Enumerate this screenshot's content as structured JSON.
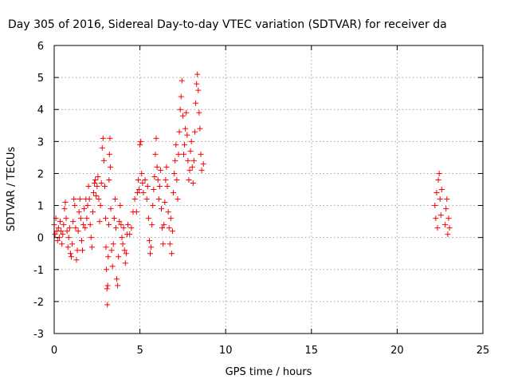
{
  "chart_data": {
    "type": "scatter",
    "title": "Day 305 of 2016, Sidereal Day-to-day VTEC variation (SDTVAR) for receiver da",
    "xlabel": "GPS time / hours",
    "ylabel": "SDTVAR / TECUs",
    "xlim": [
      0,
      25
    ],
    "ylim": [
      -3,
      6
    ],
    "xticks": [
      0,
      5,
      10,
      15,
      20,
      25
    ],
    "yticks": [
      -3,
      -2,
      -1,
      0,
      1,
      2,
      3,
      4,
      5,
      6
    ],
    "grid": true,
    "marker": "plus",
    "series": [
      {
        "name": "SDTVAR",
        "color": "#ff0000",
        "points": [
          [
            0.0,
            0.4
          ],
          [
            0.05,
            0.1
          ],
          [
            0.1,
            0.6
          ],
          [
            0.15,
            0.2
          ],
          [
            0.2,
            -0.1
          ],
          [
            0.25,
            0.3
          ],
          [
            0.3,
            0.0
          ],
          [
            0.35,
            0.5
          ],
          [
            0.4,
            0.2
          ],
          [
            0.45,
            -0.2
          ],
          [
            0.5,
            0.1
          ],
          [
            0.55,
            0.4
          ],
          [
            0.6,
            0.9
          ],
          [
            0.65,
            1.1
          ],
          [
            0.7,
            0.6
          ],
          [
            0.75,
            0.2
          ],
          [
            0.8,
            -0.3
          ],
          [
            0.85,
            0.0
          ],
          [
            0.9,
            0.3
          ],
          [
            0.95,
            -0.5
          ],
          [
            1.0,
            -0.6
          ],
          [
            1.05,
            -0.2
          ],
          [
            1.1,
            0.5
          ],
          [
            1.15,
            1.2
          ],
          [
            1.2,
            1.0
          ],
          [
            1.25,
            0.3
          ],
          [
            1.3,
            -0.7
          ],
          [
            1.35,
            -0.4
          ],
          [
            1.4,
            0.2
          ],
          [
            1.45,
            0.8
          ],
          [
            1.5,
            1.2
          ],
          [
            1.55,
            0.6
          ],
          [
            1.6,
            -0.1
          ],
          [
            1.65,
            -0.4
          ],
          [
            1.7,
            0.4
          ],
          [
            1.75,
            0.9
          ],
          [
            1.8,
            0.3
          ],
          [
            1.85,
            1.2
          ],
          [
            1.9,
            0.6
          ],
          [
            1.95,
            1.0
          ],
          [
            2.0,
            1.6
          ],
          [
            2.05,
            1.2
          ],
          [
            2.1,
            0.4
          ],
          [
            2.15,
            0.0
          ],
          [
            2.2,
            -0.3
          ],
          [
            2.25,
            0.8
          ],
          [
            2.3,
            1.4
          ],
          [
            2.35,
            1.7
          ],
          [
            2.4,
            1.8
          ],
          [
            2.45,
            1.3
          ],
          [
            2.5,
            1.6
          ],
          [
            2.55,
            1.9
          ],
          [
            2.6,
            1.2
          ],
          [
            2.65,
            0.5
          ],
          [
            2.7,
            1.0
          ],
          [
            2.75,
            1.7
          ],
          [
            2.8,
            2.8
          ],
          [
            2.85,
            3.1
          ],
          [
            2.9,
            2.4
          ],
          [
            2.95,
            1.6
          ],
          [
            3.0,
            0.6
          ],
          [
            3.02,
            -0.3
          ],
          [
            3.05,
            -1.0
          ],
          [
            3.08,
            -1.6
          ],
          [
            3.1,
            -2.1
          ],
          [
            3.12,
            -1.5
          ],
          [
            3.15,
            -0.6
          ],
          [
            3.18,
            0.4
          ],
          [
            3.2,
            1.8
          ],
          [
            3.22,
            2.6
          ],
          [
            3.25,
            3.1
          ],
          [
            3.28,
            2.2
          ],
          [
            3.3,
            0.9
          ],
          [
            3.35,
            -0.4
          ],
          [
            3.4,
            -0.9
          ],
          [
            3.45,
            -0.2
          ],
          [
            3.5,
            0.6
          ],
          [
            3.55,
            1.2
          ],
          [
            3.6,
            0.3
          ],
          [
            3.65,
            -1.3
          ],
          [
            3.7,
            -1.5
          ],
          [
            3.75,
            -0.6
          ],
          [
            3.8,
            0.5
          ],
          [
            3.85,
            1.0
          ],
          [
            3.9,
            0.4
          ],
          [
            3.95,
            0.0
          ],
          [
            4.0,
            -0.2
          ],
          [
            4.05,
            0.3
          ],
          [
            4.1,
            -0.4
          ],
          [
            4.15,
            -0.8
          ],
          [
            4.2,
            -0.5
          ],
          [
            4.25,
            0.1
          ],
          [
            4.3,
            0.4
          ],
          [
            4.4,
            0.1
          ],
          [
            4.5,
            0.3
          ],
          [
            4.6,
            0.8
          ],
          [
            4.7,
            1.2
          ],
          [
            4.8,
            0.8
          ],
          [
            4.85,
            1.4
          ],
          [
            4.9,
            1.8
          ],
          [
            4.95,
            1.5
          ],
          [
            5.0,
            2.9
          ],
          [
            5.05,
            3.0
          ],
          [
            5.1,
            2.0
          ],
          [
            5.15,
            1.7
          ],
          [
            5.2,
            1.4
          ],
          [
            5.3,
            1.8
          ],
          [
            5.4,
            1.2
          ],
          [
            5.45,
            1.6
          ],
          [
            5.5,
            0.6
          ],
          [
            5.55,
            -0.1
          ],
          [
            5.6,
            -0.5
          ],
          [
            5.65,
            -0.3
          ],
          [
            5.7,
            0.4
          ],
          [
            5.75,
            1.0
          ],
          [
            5.8,
            1.5
          ],
          [
            5.85,
            1.9
          ],
          [
            5.9,
            2.6
          ],
          [
            5.95,
            3.1
          ],
          [
            6.0,
            2.2
          ],
          [
            6.05,
            1.8
          ],
          [
            6.1,
            1.2
          ],
          [
            6.15,
            1.6
          ],
          [
            6.2,
            2.1
          ],
          [
            6.25,
            0.9
          ],
          [
            6.3,
            0.3
          ],
          [
            6.35,
            -0.2
          ],
          [
            6.4,
            0.4
          ],
          [
            6.45,
            1.1
          ],
          [
            6.5,
            1.8
          ],
          [
            6.55,
            2.2
          ],
          [
            6.6,
            1.6
          ],
          [
            6.65,
            0.8
          ],
          [
            6.7,
            0.3
          ],
          [
            6.75,
            -0.2
          ],
          [
            6.8,
            0.6
          ],
          [
            6.85,
            -0.5
          ],
          [
            6.9,
            0.2
          ],
          [
            6.95,
            1.4
          ],
          [
            7.0,
            2.0
          ],
          [
            7.05,
            2.4
          ],
          [
            7.1,
            2.9
          ],
          [
            7.15,
            1.8
          ],
          [
            7.2,
            1.2
          ],
          [
            7.25,
            2.6
          ],
          [
            7.3,
            3.3
          ],
          [
            7.35,
            4.0
          ],
          [
            7.4,
            4.4
          ],
          [
            7.45,
            4.9
          ],
          [
            7.5,
            3.8
          ],
          [
            7.55,
            2.6
          ],
          [
            7.6,
            2.9
          ],
          [
            7.65,
            3.4
          ],
          [
            7.7,
            3.9
          ],
          [
            7.75,
            3.2
          ],
          [
            7.8,
            2.4
          ],
          [
            7.85,
            1.8
          ],
          [
            7.9,
            2.1
          ],
          [
            7.95,
            2.7
          ],
          [
            8.0,
            3.0
          ],
          [
            8.05,
            2.2
          ],
          [
            8.1,
            1.7
          ],
          [
            8.15,
            2.4
          ],
          [
            8.2,
            3.3
          ],
          [
            8.25,
            4.2
          ],
          [
            8.3,
            4.8
          ],
          [
            8.35,
            5.1
          ],
          [
            8.4,
            4.6
          ],
          [
            8.45,
            3.9
          ],
          [
            8.5,
            3.4
          ],
          [
            8.55,
            2.6
          ],
          [
            8.6,
            2.1
          ],
          [
            8.7,
            2.3
          ],
          [
            22.2,
            1.0
          ],
          [
            22.25,
            0.6
          ],
          [
            22.3,
            1.4
          ],
          [
            22.35,
            0.3
          ],
          [
            22.4,
            1.8
          ],
          [
            22.45,
            2.0
          ],
          [
            22.5,
            1.2
          ],
          [
            22.55,
            0.7
          ],
          [
            22.6,
            1.5
          ],
          [
            22.8,
            0.4
          ],
          [
            22.85,
            0.9
          ],
          [
            22.9,
            1.2
          ],
          [
            22.95,
            0.1
          ],
          [
            23.0,
            0.6
          ],
          [
            23.05,
            0.3
          ]
        ]
      }
    ]
  }
}
